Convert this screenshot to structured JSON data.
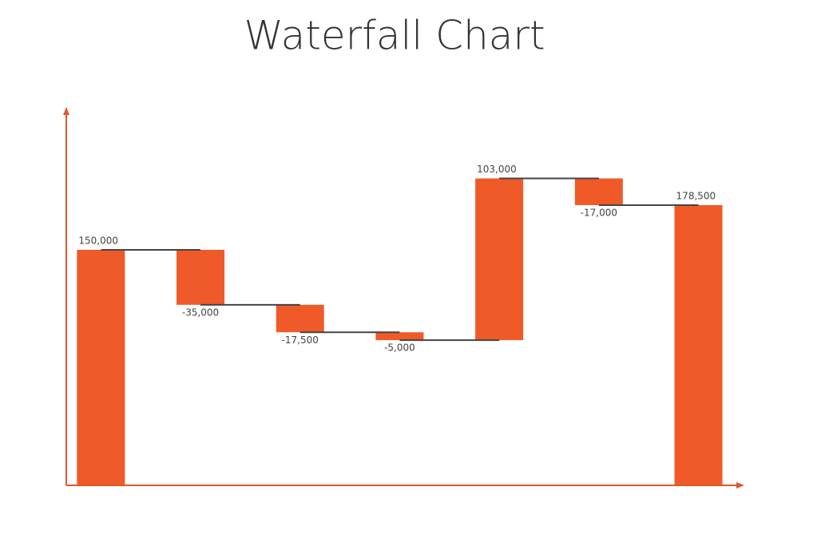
{
  "chart_data": {
    "type": "waterfall",
    "title": "Waterfall Chart",
    "values": [
      150000,
      -35000,
      -17500,
      -5000,
      103000,
      -17000,
      178500
    ],
    "value_labels": [
      "150,000",
      "-35,000",
      "-17,500",
      "-5,000",
      "103,000",
      "-17,000",
      "178,500"
    ],
    "measures": [
      "absolute",
      "relative",
      "relative",
      "relative",
      "relative",
      "relative",
      "total"
    ],
    "color": "#f05a28",
    "connector_color": "#444444",
    "axis_color": "#e0562a",
    "ylim": [
      0,
      240000
    ]
  }
}
